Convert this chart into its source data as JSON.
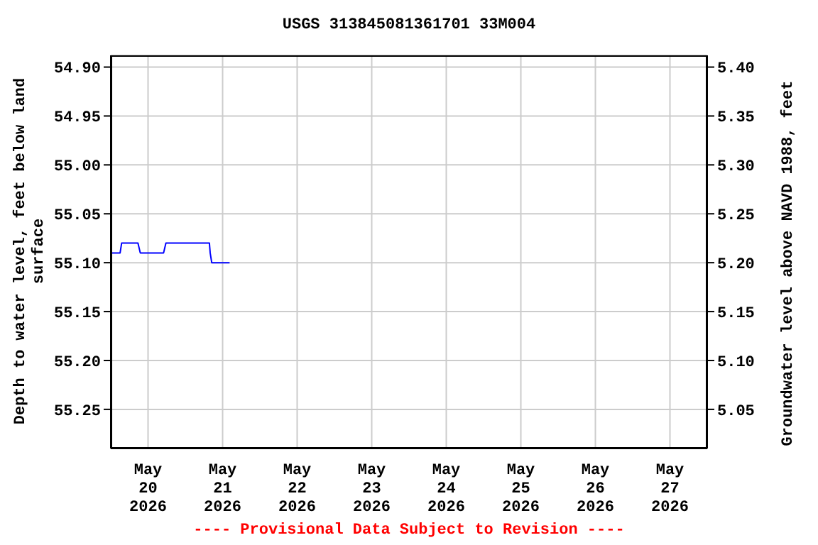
{
  "chart_data": {
    "type": "line",
    "title": "USGS 313845081361701 33M004",
    "ylabel": "Depth to water level, feet below land surface",
    "y2label": "Groundwater level above NAVD 1988, feet",
    "annotations": [
      "---- Provisional Data Subject to Revision ----"
    ],
    "x": [
      "2026-05-19T12:00",
      "2026-05-19T15:00",
      "2026-05-19T15:30",
      "2026-05-19T20:45",
      "2026-05-19T21:30",
      "2026-05-20T05:00",
      "2026-05-20T05:45",
      "2026-05-20T19:45",
      "2026-05-20T20:00",
      "2026-05-20T20:30",
      "2026-05-21T02:15"
    ],
    "series": [
      {
        "color": "#0000ff",
        "values": [
          55.09,
          55.09,
          55.08,
          55.08,
          55.09,
          55.09,
          55.08,
          55.08,
          55.09,
          55.1,
          55.1
        ]
      }
    ],
    "xlim": [
      "2026-05-19T12:00",
      "2026-05-27T12:00"
    ],
    "xticks": [
      {
        "value": "2026-05-20",
        "label": "May\n20\n2026"
      },
      {
        "value": "2026-05-21",
        "label": "May\n21\n2026"
      },
      {
        "value": "2026-05-22",
        "label": "May\n22\n2026"
      },
      {
        "value": "2026-05-23",
        "label": "May\n23\n2026"
      },
      {
        "value": "2026-05-24",
        "label": "May\n24\n2026"
      },
      {
        "value": "2026-05-25",
        "label": "May\n25\n2026"
      },
      {
        "value": "2026-05-26",
        "label": "May\n26\n2026"
      },
      {
        "value": "2026-05-27",
        "label": "May\n27\n2026"
      }
    ],
    "ylim": [
      55.29,
      54.888
    ],
    "yticks": [
      {
        "value": 54.9,
        "label": "54.90"
      },
      {
        "value": 54.95,
        "label": "54.95"
      },
      {
        "value": 55.0,
        "label": "55.00"
      },
      {
        "value": 55.05,
        "label": "55.05"
      },
      {
        "value": 55.1,
        "label": "55.10"
      },
      {
        "value": 55.15,
        "label": "55.15"
      },
      {
        "value": 55.2,
        "label": "55.20"
      },
      {
        "value": 55.25,
        "label": "55.25"
      }
    ],
    "y2lim": [
      5.01,
      5.412
    ],
    "y2ticks": [
      {
        "value": 5.05,
        "label": "5.05"
      },
      {
        "value": 5.1,
        "label": "5.10"
      },
      {
        "value": 5.15,
        "label": "5.15"
      },
      {
        "value": 5.2,
        "label": "5.20"
      },
      {
        "value": 5.25,
        "label": "5.25"
      },
      {
        "value": 5.3,
        "label": "5.30"
      },
      {
        "value": 5.35,
        "label": "5.35"
      },
      {
        "value": 5.4,
        "label": "5.40"
      }
    ],
    "grid": true,
    "legend": false,
    "marker": "none",
    "line_style": "solid"
  }
}
